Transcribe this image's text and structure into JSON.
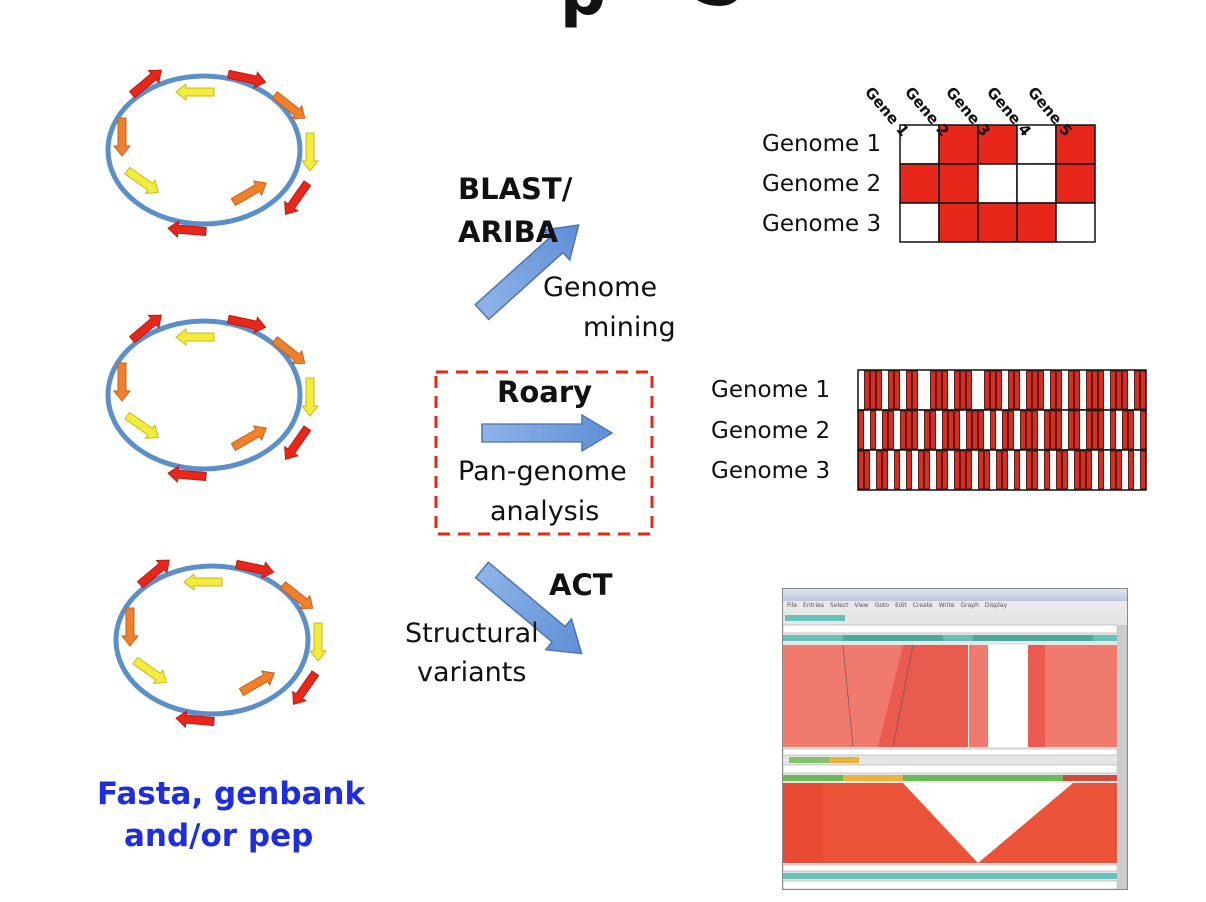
{
  "header": {
    "partial_title": "p"
  },
  "inputs": {
    "label_line1": "Fasta, genbank",
    "label_line2": "and/or pep",
    "color": "#1f2de0"
  },
  "methods": [
    {
      "tool_line1": "BLAST/",
      "tool_line2": "ARIBA",
      "desc_line1": "Genome",
      "desc_line2": "mining"
    },
    {
      "tool_line1": "Roary",
      "tool_line2": "",
      "desc_line1": "Pan-genome",
      "desc_line2": "analysis"
    },
    {
      "tool_line1": "ACT",
      "tool_line2": "",
      "desc_line1": "Structural",
      "desc_line2": "variants"
    }
  ],
  "gene_matrix": {
    "columns": [
      "Gene 1",
      "Gene 2",
      "Gene 3",
      "Gene 4",
      "Gene 5"
    ],
    "rows": [
      {
        "label": "Genome 1",
        "presence": [
          0,
          1,
          1,
          0,
          1
        ]
      },
      {
        "label": "Genome 2",
        "presence": [
          1,
          1,
          0,
          0,
          1
        ]
      },
      {
        "label": "Genome 3",
        "presence": [
          0,
          1,
          1,
          1,
          0
        ]
      }
    ],
    "present_color": "#e8271a",
    "absent_color": "#ffffff"
  },
  "pan_matrix": {
    "rows": [
      "Genome 1",
      "Genome 2",
      "Genome 3"
    ]
  },
  "act_window": {
    "menu": [
      "File",
      "Entries",
      "Select",
      "View",
      "Goto",
      "Edit",
      "Create",
      "Write",
      "Graph",
      "Display"
    ]
  }
}
